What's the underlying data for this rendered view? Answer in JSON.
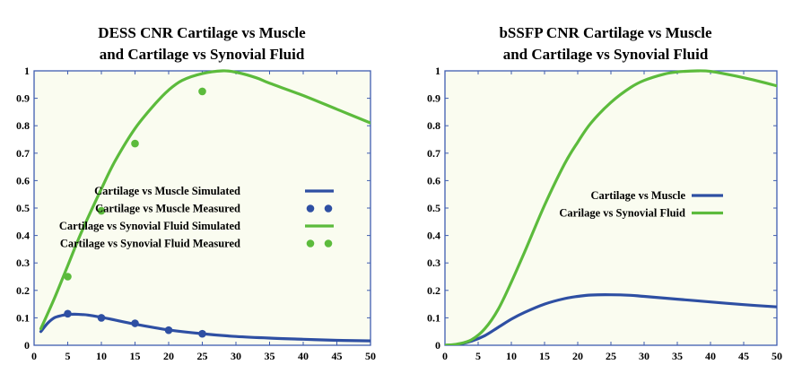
{
  "colors": {
    "blue": "#2e4fa3",
    "green": "#5cbb3c",
    "frame": "#3f5db0",
    "plot_bg": "#fafcf0"
  },
  "chart_data": [
    {
      "type": "line",
      "title_lines": [
        "DESS CNR Cartilage vs Muscle",
        "and Cartilage vs Synovial Fluid"
      ],
      "xlim": [
        0,
        50
      ],
      "ylim": [
        0,
        1
      ],
      "xticks": [
        "0",
        "5",
        "10",
        "15",
        "20",
        "25",
        "30",
        "35",
        "40",
        "45",
        "50"
      ],
      "yticks": [
        "0",
        "0.1",
        "0.2",
        "0.3",
        "0.4",
        "0.5",
        "0.6",
        "0.7",
        "0.8",
        "0.9",
        "1"
      ],
      "grid": false,
      "legend_position": "center",
      "series": [
        {
          "name": "Cartilage vs Muscle Simulated",
          "kind": "line",
          "color": "#2e4fa3",
          "x": [
            1,
            2,
            3,
            4,
            5,
            6,
            7,
            8,
            10,
            12,
            15,
            20,
            25,
            30,
            35,
            40,
            45,
            50
          ],
          "y": [
            0.05,
            0.08,
            0.1,
            0.108,
            0.112,
            0.113,
            0.112,
            0.11,
            0.102,
            0.092,
            0.077,
            0.056,
            0.042,
            0.032,
            0.026,
            0.022,
            0.018,
            0.016
          ]
        },
        {
          "name": "Cartilage vs Muscle Measured",
          "kind": "scatter",
          "color": "#2e4fa3",
          "x": [
            5,
            10,
            15,
            20,
            25
          ],
          "y": [
            0.115,
            0.1,
            0.08,
            0.055,
            0.042
          ]
        },
        {
          "name": "Cartilage vs Synovial Fluid Simulated",
          "kind": "line",
          "color": "#5cbb3c",
          "x": [
            1,
            3,
            5,
            7,
            10,
            12,
            15,
            18,
            20,
            22,
            25,
            28,
            30,
            33,
            35,
            40,
            45,
            50
          ],
          "y": [
            0.06,
            0.17,
            0.29,
            0.41,
            0.57,
            0.67,
            0.79,
            0.88,
            0.93,
            0.965,
            0.99,
            1.0,
            0.995,
            0.975,
            0.955,
            0.91,
            0.86,
            0.81
          ]
        },
        {
          "name": "Cartilage vs Synovial Fluid Measured",
          "kind": "scatter",
          "color": "#5cbb3c",
          "x": [
            5,
            10,
            15,
            25
          ],
          "y": [
            0.25,
            0.49,
            0.735,
            0.925
          ]
        }
      ]
    },
    {
      "type": "line",
      "title_lines": [
        "bSSFP CNR Cartilage vs Muscle",
        "and Cartilage vs Synovial Fluid"
      ],
      "xlim": [
        0,
        50
      ],
      "ylim": [
        0,
        1
      ],
      "xticks": [
        "0",
        "5",
        "10",
        "15",
        "20",
        "25",
        "30",
        "35",
        "40",
        "45",
        "50"
      ],
      "yticks": [
        "0",
        "0.1",
        "0.2",
        "0.3",
        "0.4",
        "0.5",
        "0.6",
        "0.7",
        "0.8",
        "0.9",
        "1"
      ],
      "grid": false,
      "legend_position": "center",
      "series": [
        {
          "name": "Cartilage vs Muscle",
          "kind": "line",
          "color": "#2e4fa3",
          "x": [
            0,
            2,
            4,
            6,
            8,
            10,
            12,
            15,
            18,
            20,
            22,
            25,
            28,
            30,
            35,
            40,
            45,
            50
          ],
          "y": [
            0,
            0.003,
            0.015,
            0.035,
            0.065,
            0.095,
            0.12,
            0.15,
            0.17,
            0.178,
            0.183,
            0.184,
            0.182,
            0.178,
            0.168,
            0.158,
            0.148,
            0.14
          ]
        },
        {
          "name": "Carilage vs Synovial Fluid",
          "kind": "line",
          "color": "#5cbb3c",
          "x": [
            0,
            2,
            4,
            6,
            8,
            10,
            12,
            15,
            18,
            20,
            22,
            25,
            28,
            30,
            33,
            35,
            38,
            40,
            43,
            45,
            48,
            50
          ],
          "y": [
            0,
            0.005,
            0.02,
            0.06,
            0.13,
            0.23,
            0.34,
            0.51,
            0.66,
            0.74,
            0.81,
            0.885,
            0.94,
            0.965,
            0.988,
            0.996,
            1.0,
            0.998,
            0.985,
            0.975,
            0.958,
            0.945
          ]
        }
      ]
    }
  ]
}
